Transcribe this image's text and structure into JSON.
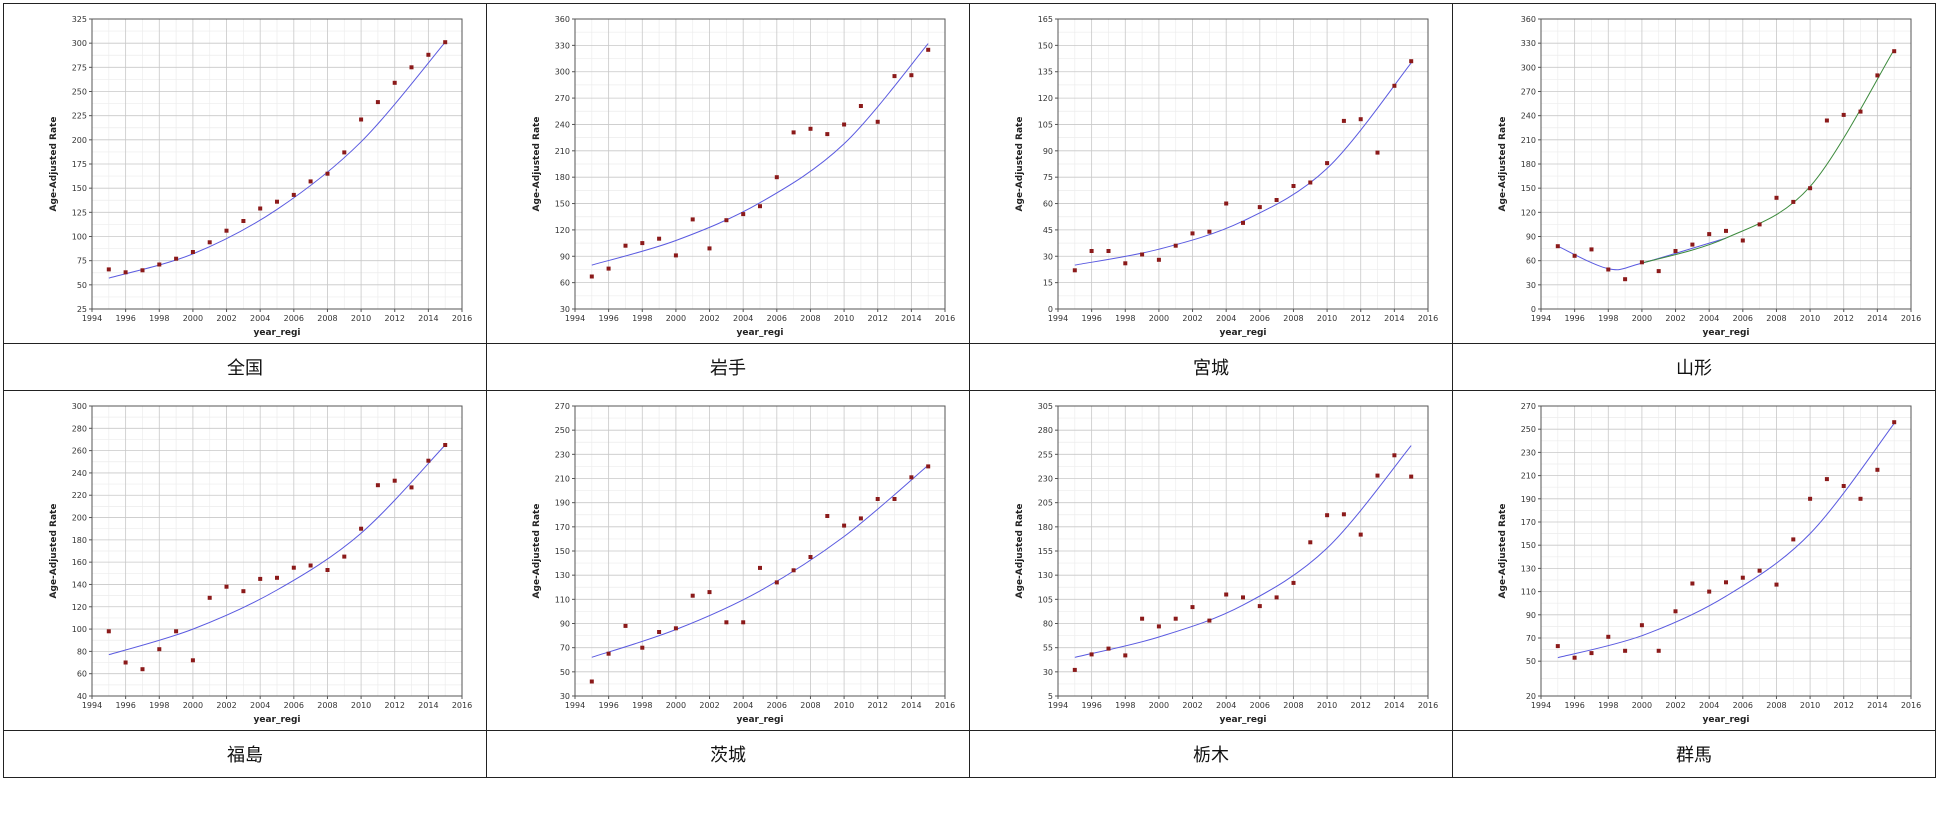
{
  "ylabel": "Age-Adjusted Rate",
  "xlabel": "year_regi",
  "colors": {
    "point": "#8b1a1a",
    "fit": "#5a5ae0",
    "fit_yamagata_right": "#3c8a3c",
    "grid": "#c8c8c8",
    "border": "#222222"
  },
  "chart_data": [
    {
      "type": "scatter",
      "label": "全国",
      "xlim": [
        1994,
        2016
      ],
      "ylim": [
        25,
        325
      ],
      "xticks": [
        1994,
        1996,
        1998,
        2000,
        2002,
        2004,
        2006,
        2008,
        2010,
        2012,
        2014,
        2016
      ],
      "yticks": [
        25,
        50,
        75,
        100,
        125,
        150,
        175,
        200,
        225,
        250,
        275,
        300,
        325
      ],
      "x": [
        1995,
        1996,
        1997,
        1998,
        1999,
        2000,
        2001,
        2002,
        2003,
        2004,
        2005,
        2006,
        2007,
        2008,
        2009,
        2010,
        2011,
        2012,
        2013,
        2014,
        2015
      ],
      "y": [
        66,
        63,
        65,
        71,
        77,
        84,
        94,
        106,
        116,
        129,
        136,
        143,
        157,
        165,
        187,
        221,
        239,
        259,
        275,
        288,
        301
      ],
      "fit": [
        [
          1995,
          57
        ],
        [
          2000,
          82
        ],
        [
          2005,
          128
        ],
        [
          2010,
          198
        ],
        [
          2015,
          301
        ]
      ]
    },
    {
      "type": "scatter",
      "label": "岩手",
      "xlim": [
        1994,
        2016
      ],
      "ylim": [
        30,
        360
      ],
      "xticks": [
        1994,
        1996,
        1998,
        2000,
        2002,
        2004,
        2006,
        2008,
        2010,
        2012,
        2014,
        2016
      ],
      "yticks": [
        30,
        60,
        90,
        120,
        150,
        180,
        210,
        240,
        270,
        300,
        330,
        360
      ],
      "x": [
        1995,
        1996,
        1997,
        1998,
        1999,
        2000,
        2001,
        2002,
        2003,
        2004,
        2005,
        2006,
        2007,
        2008,
        2009,
        2010,
        2011,
        2012,
        2013,
        2014,
        2015
      ],
      "y": [
        67,
        76,
        102,
        105,
        110,
        91,
        132,
        99,
        131,
        138,
        147,
        180,
        231,
        235,
        229,
        240,
        261,
        243,
        295,
        296,
        325
      ],
      "fit": [
        [
          1995,
          80
        ],
        [
          2000,
          108
        ],
        [
          2005,
          151
        ],
        [
          2010,
          218
        ],
        [
          2015,
          332
        ]
      ]
    },
    {
      "type": "scatter",
      "label": "宮城",
      "xlim": [
        1994,
        2016
      ],
      "ylim": [
        0,
        165
      ],
      "xticks": [
        1994,
        1996,
        1998,
        2000,
        2002,
        2004,
        2006,
        2008,
        2010,
        2012,
        2014,
        2016
      ],
      "yticks": [
        0,
        15,
        30,
        45,
        60,
        75,
        90,
        105,
        120,
        135,
        150,
        165
      ],
      "x": [
        1995,
        1996,
        1997,
        1998,
        1999,
        2000,
        2001,
        2002,
        2003,
        2004,
        2005,
        2006,
        2007,
        2008,
        2009,
        2010,
        2011,
        2012,
        2013,
        2014,
        2015
      ],
      "y": [
        22,
        33,
        33,
        26,
        31,
        28,
        36,
        43,
        44,
        60,
        49,
        58,
        62,
        70,
        72,
        83,
        107,
        108,
        89,
        127,
        141
      ],
      "fit": [
        [
          1995,
          25
        ],
        [
          2000,
          34
        ],
        [
          2005,
          50
        ],
        [
          2010,
          80
        ],
        [
          2015,
          140
        ]
      ]
    },
    {
      "type": "scatter",
      "label": "山形",
      "xlim": [
        1994,
        2016
      ],
      "ylim": [
        0,
        360
      ],
      "xticks": [
        1994,
        1996,
        1998,
        2000,
        2002,
        2004,
        2006,
        2008,
        2010,
        2012,
        2014,
        2016
      ],
      "yticks": [
        0,
        30,
        60,
        90,
        120,
        150,
        180,
        210,
        240,
        270,
        300,
        330,
        360
      ],
      "x": [
        1995,
        1996,
        1997,
        1998,
        1999,
        2000,
        2001,
        2002,
        2003,
        2004,
        2005,
        2006,
        2007,
        2008,
        2009,
        2010,
        2011,
        2012,
        2013,
        2014,
        2015
      ],
      "y": [
        78,
        66,
        74,
        49,
        37,
        58,
        47,
        72,
        80,
        93,
        97,
        85,
        105,
        138,
        133,
        150,
        234,
        241,
        245,
        290,
        320
      ],
      "fit": [
        [
          1995,
          78
        ],
        [
          1998,
          50
        ],
        [
          2000,
          57
        ],
        [
          2005,
          88
        ],
        [
          2010,
          152
        ],
        [
          2015,
          322
        ]
      ]
    },
    {
      "type": "scatter",
      "label": "福島",
      "xlim": [
        1994,
        2016
      ],
      "ylim": [
        40,
        300
      ],
      "xticks": [
        1994,
        1996,
        1998,
        2000,
        2002,
        2004,
        2006,
        2008,
        2010,
        2012,
        2014,
        2016
      ],
      "yticks": [
        40,
        60,
        80,
        100,
        120,
        140,
        160,
        180,
        200,
        220,
        240,
        260,
        280,
        300
      ],
      "x": [
        1995,
        1996,
        1997,
        1998,
        1999,
        2000,
        2001,
        2002,
        2003,
        2004,
        2005,
        2006,
        2007,
        2008,
        2009,
        2010,
        2011,
        2012,
        2013,
        2014,
        2015
      ],
      "y": [
        98,
        70,
        64,
        82,
        98,
        72,
        128,
        138,
        134,
        145,
        146,
        155,
        157,
        153,
        165,
        190,
        229,
        233,
        227,
        251,
        265
      ],
      "fit": [
        [
          1995,
          77
        ],
        [
          2000,
          100
        ],
        [
          2005,
          135
        ],
        [
          2010,
          186
        ],
        [
          2015,
          265
        ]
      ]
    },
    {
      "type": "scatter",
      "label": "茨城",
      "xlim": [
        1994,
        2016
      ],
      "ylim": [
        30,
        270
      ],
      "xticks": [
        1994,
        1996,
        1998,
        2000,
        2002,
        2004,
        2006,
        2008,
        2010,
        2012,
        2014,
        2016
      ],
      "yticks": [
        30,
        50,
        70,
        90,
        110,
        130,
        150,
        170,
        190,
        210,
        230,
        250,
        270
      ],
      "x": [
        1995,
        1996,
        1997,
        1998,
        1999,
        2000,
        2001,
        2002,
        2003,
        2004,
        2005,
        2006,
        2007,
        2008,
        2009,
        2010,
        2011,
        2012,
        2013,
        2014,
        2015
      ],
      "y": [
        42,
        65,
        88,
        70,
        83,
        86,
        113,
        116,
        91,
        91,
        136,
        124,
        134,
        145,
        179,
        171,
        177,
        193,
        193,
        211,
        220
      ],
      "fit": [
        [
          1995,
          62
        ],
        [
          2000,
          85
        ],
        [
          2005,
          117
        ],
        [
          2010,
          162
        ],
        [
          2015,
          221
        ]
      ]
    },
    {
      "type": "scatter",
      "label": "栃木",
      "xlim": [
        1994,
        2016
      ],
      "ylim": [
        5,
        305
      ],
      "xticks": [
        1994,
        1996,
        1998,
        2000,
        2002,
        2004,
        2006,
        2008,
        2010,
        2012,
        2014,
        2016
      ],
      "yticks": [
        5,
        30,
        55,
        80,
        105,
        130,
        155,
        180,
        205,
        230,
        255,
        280,
        305
      ],
      "x": [
        1995,
        1996,
        1997,
        1998,
        1999,
        2000,
        2001,
        2002,
        2003,
        2004,
        2005,
        2006,
        2007,
        2008,
        2009,
        2010,
        2011,
        2012,
        2013,
        2014,
        2015
      ],
      "y": [
        32,
        48,
        54,
        47,
        85,
        77,
        85,
        97,
        83,
        110,
        107,
        98,
        107,
        122,
        164,
        192,
        193,
        172,
        233,
        254,
        232
      ],
      "fit": [
        [
          1995,
          45
        ],
        [
          2000,
          66
        ],
        [
          2005,
          99
        ],
        [
          2010,
          158
        ],
        [
          2015,
          264
        ]
      ]
    },
    {
      "type": "scatter",
      "label": "群馬",
      "xlim": [
        1994,
        2016
      ],
      "ylim": [
        20,
        270
      ],
      "xticks": [
        1994,
        1996,
        1998,
        2000,
        2002,
        2004,
        2006,
        2008,
        2010,
        2012,
        2014,
        2016
      ],
      "yticks": [
        20,
        50,
        70,
        90,
        110,
        130,
        150,
        170,
        190,
        210,
        230,
        250,
        270
      ],
      "x": [
        1995,
        1996,
        1997,
        1998,
        1999,
        2000,
        2001,
        2002,
        2003,
        2004,
        2005,
        2006,
        2007,
        2008,
        2009,
        2010,
        2011,
        2012,
        2013,
        2014,
        2015
      ],
      "y": [
        63,
        53,
        57,
        71,
        59,
        81,
        59,
        93,
        117,
        110,
        118,
        122,
        128,
        116,
        155,
        190,
        207,
        201,
        190,
        215,
        256
      ],
      "fit": [
        [
          1995,
          53
        ],
        [
          2000,
          72
        ],
        [
          2005,
          106
        ],
        [
          2010,
          160
        ],
        [
          2015,
          255
        ]
      ]
    }
  ]
}
